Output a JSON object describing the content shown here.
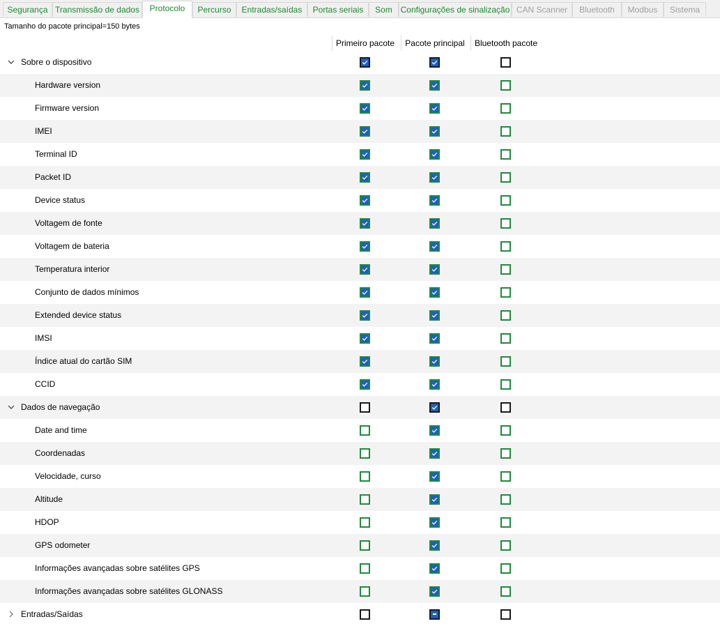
{
  "tabs": [
    {
      "label": "Segurança",
      "state": "normal"
    },
    {
      "label": "Transmissão de dados",
      "state": "normal"
    },
    {
      "label": "Protocolo",
      "state": "active"
    },
    {
      "label": "Percurso",
      "state": "normal"
    },
    {
      "label": "Entradas/saídas",
      "state": "normal"
    },
    {
      "label": "Portas seriais",
      "state": "normal"
    },
    {
      "label": "Som",
      "state": "normal"
    },
    {
      "label": "Configurações de sinalização",
      "state": "normal"
    },
    {
      "label": "CAN Scanner",
      "state": "disabled"
    },
    {
      "label": "Bluetooth",
      "state": "disabled"
    },
    {
      "label": "Modbus",
      "state": "disabled"
    },
    {
      "label": "Sistema",
      "state": "disabled"
    }
  ],
  "packet_size_text": "Tamanho do pacote principal=150 bytes",
  "columns": [
    "Primeiro pacote",
    "Pacote principal",
    "Bluetooth pacote"
  ],
  "colors": {
    "tab_text": "#1a8a2f",
    "tab_disabled_text": "#a0a0a0",
    "checkbox_checked": "#1f5fbf",
    "checkbox_item_border": "#1e8a3c",
    "checkbox_group_border": "#1a1a1a",
    "row_alt": "#f3f3f3"
  },
  "groups": [
    {
      "label": "Sobre o dispositivo",
      "expanded": true,
      "icon": "chevron-down-icon",
      "checks": [
        true,
        true,
        false
      ],
      "items": [
        {
          "label": "Hardware version",
          "checks": [
            true,
            true,
            false
          ]
        },
        {
          "label": "Firmware version",
          "checks": [
            true,
            true,
            false
          ]
        },
        {
          "label": "IMEI",
          "checks": [
            true,
            true,
            false
          ]
        },
        {
          "label": "Terminal ID",
          "checks": [
            true,
            true,
            false
          ]
        },
        {
          "label": "Packet ID",
          "checks": [
            true,
            true,
            false
          ]
        },
        {
          "label": "Device status",
          "checks": [
            true,
            true,
            false
          ]
        },
        {
          "label": "Voltagem de fonte",
          "checks": [
            true,
            true,
            false
          ]
        },
        {
          "label": "Voltagem de bateria",
          "checks": [
            true,
            true,
            false
          ]
        },
        {
          "label": "Temperatura interior",
          "checks": [
            true,
            true,
            false
          ]
        },
        {
          "label": "Conjunto de dados mínimos",
          "checks": [
            true,
            true,
            false
          ]
        },
        {
          "label": "Extended device status",
          "checks": [
            true,
            true,
            false
          ]
        },
        {
          "label": "IMSI",
          "checks": [
            true,
            true,
            false
          ]
        },
        {
          "label": "Índice atual do cartão SIM",
          "checks": [
            true,
            true,
            false
          ]
        },
        {
          "label": "CCID",
          "checks": [
            true,
            true,
            false
          ]
        }
      ]
    },
    {
      "label": "Dados de navegação",
      "expanded": true,
      "icon": "chevron-down-icon",
      "checks": [
        false,
        true,
        false
      ],
      "items": [
        {
          "label": "Date and time",
          "checks": [
            false,
            true,
            false
          ]
        },
        {
          "label": "Coordenadas",
          "checks": [
            false,
            true,
            false
          ]
        },
        {
          "label": "Velocidade, curso",
          "checks": [
            false,
            true,
            false
          ]
        },
        {
          "label": "Altitude",
          "checks": [
            false,
            true,
            false
          ]
        },
        {
          "label": "HDOP",
          "checks": [
            false,
            true,
            false
          ]
        },
        {
          "label": "GPS odometer",
          "checks": [
            false,
            true,
            false
          ]
        },
        {
          "label": "Informações avançadas sobre satélites GPS",
          "checks": [
            false,
            true,
            false
          ]
        },
        {
          "label": "Informações avançadas sobre satélites GLONASS",
          "checks": [
            false,
            true,
            false
          ]
        }
      ]
    },
    {
      "label": "Entradas/Saídas",
      "expanded": false,
      "icon": "chevron-right-icon",
      "checks": [
        false,
        "partial",
        false
      ],
      "items": []
    }
  ]
}
